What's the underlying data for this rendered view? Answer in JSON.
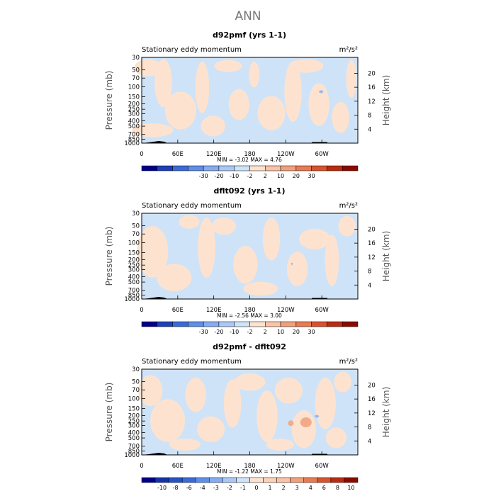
{
  "title": "ANN",
  "colors": {
    "light_blue": "#cfe3f8",
    "peach": "#fde3cf",
    "blue_blob": "#9cb8e6",
    "orange_blob": "#f2ab88",
    "terrain": "#000000"
  },
  "chart_data": [
    {
      "type": "heatmap",
      "title": "d92pmf (yrs 1-1)",
      "subtitle": "Stationary eddy momentum",
      "units": "m²/s²",
      "ylabel_left": "Pressure (mb)",
      "ylabel_right": "Height (km)",
      "xlim": [
        0,
        360
      ],
      "x_ticks": [
        "0",
        "60E",
        "120E",
        "180",
        "120W",
        "60W"
      ],
      "y_ticks_left": [
        "30",
        "50",
        "70",
        "100",
        "150",
        "200",
        "250",
        "300",
        "400",
        "500",
        "700",
        "850",
        "1000"
      ],
      "y_ticks_right": [
        "20",
        "16",
        "12",
        "8",
        "4"
      ],
      "stats": {
        "min_label": "MIN =",
        "min": "-3.02",
        "max_label": "MAX =",
        "max": "4.76"
      },
      "colorbar_levels": [
        "-30",
        "-20",
        "-10",
        "-2",
        "2",
        "10",
        "20",
        "30"
      ],
      "colorbar_colors": [
        "#00008b",
        "#1d3fb8",
        "#3a6ad8",
        "#5f8ee8",
        "#86acef",
        "#abc8f5",
        "#cfe3f8",
        "#fde3cf",
        "#f8c3a6",
        "#f1a07c",
        "#e77b52",
        "#d8532d",
        "#b82c10",
        "#8b0a00"
      ],
      "field_summary": "mostly light blue (-2 to 2) with scattered light orange (2 to 10) regions"
    },
    {
      "type": "heatmap",
      "title": "dflt092 (yrs 1-1)",
      "subtitle": "Stationary eddy momentum",
      "units": "m²/s²",
      "ylabel_left": "Pressure (mb)",
      "ylabel_right": "Height (km)",
      "xlim": [
        0,
        360
      ],
      "x_ticks": [
        "0",
        "60E",
        "120E",
        "180",
        "120W",
        "60W"
      ],
      "y_ticks_left": [
        "30",
        "50",
        "70",
        "100",
        "150",
        "200",
        "250",
        "300",
        "400",
        "500",
        "700",
        "850",
        "1000"
      ],
      "y_ticks_right": [
        "20",
        "16",
        "12",
        "8",
        "4"
      ],
      "stats": {
        "min_label": "MIN =",
        "min": "-2.56",
        "max_label": "MAX =",
        "max": "3.00"
      },
      "colorbar_levels": [
        "-30",
        "-20",
        "-10",
        "-2",
        "2",
        "10",
        "20",
        "30"
      ],
      "colorbar_colors": [
        "#00008b",
        "#1d3fb8",
        "#3a6ad8",
        "#5f8ee8",
        "#86acef",
        "#abc8f5",
        "#cfe3f8",
        "#fde3cf",
        "#f8c3a6",
        "#f1a07c",
        "#e77b52",
        "#d8532d",
        "#b82c10",
        "#8b0a00"
      ],
      "field_summary": "mostly light blue (-2 to 2) with scattered light orange (2 to 10) regions"
    },
    {
      "type": "heatmap",
      "title": "d92pmf - dflt092",
      "subtitle": "Stationary eddy momentum",
      "units": "m²/s²",
      "ylabel_left": "Pressure (mb)",
      "ylabel_right": "Height (km)",
      "xlim": [
        0,
        360
      ],
      "x_ticks": [
        "0",
        "60E",
        "120E",
        "180",
        "120W",
        "60W"
      ],
      "y_ticks_left": [
        "30",
        "50",
        "70",
        "100",
        "150",
        "200",
        "250",
        "300",
        "400",
        "500",
        "700",
        "850",
        "1000"
      ],
      "y_ticks_right": [
        "20",
        "16",
        "12",
        "8",
        "4"
      ],
      "stats": {
        "min_label": "MIN =",
        "min": "-1.22",
        "max_label": "MAX =",
        "max": "1.75"
      },
      "colorbar_levels": [
        "-10",
        "-8",
        "-6",
        "-4",
        "-3",
        "-2",
        "-1",
        "0",
        "1",
        "2",
        "3",
        "4",
        "6",
        "8",
        "10"
      ],
      "colorbar_colors": [
        "#00008b",
        "#1233a8",
        "#2552c4",
        "#3a6ad8",
        "#5f8ee8",
        "#86acef",
        "#abc8f5",
        "#cfe3f8",
        "#fde3cf",
        "#fbd2b8",
        "#f8c3a6",
        "#f1a07c",
        "#e77b52",
        "#d8532d",
        "#b82c10",
        "#8b0a00"
      ],
      "field_summary": "mixed light blue (-1 to 0) and light orange (0 to 1) regions with a small orange (1 to 2) patch near 120W"
    }
  ]
}
